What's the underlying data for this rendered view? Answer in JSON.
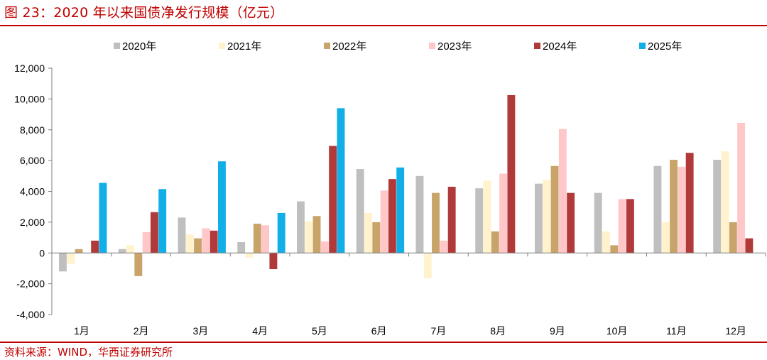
{
  "header": {
    "title": "图 23：2020 年以来国债净发行规模（亿元）"
  },
  "footer": {
    "source": "资料来源：WIND，华西证券研究所"
  },
  "colors": {
    "accent": "#c00000",
    "series": [
      "#bfbfbf",
      "#fff2cc",
      "#c9a46a",
      "#ffc7c7",
      "#b03a3a",
      "#12aee8"
    ]
  },
  "chart_data": {
    "type": "bar",
    "title": "2020 年以来国债净发行规模（亿元）",
    "xlabel": "",
    "ylabel": "",
    "ylim": [
      -4000,
      12000
    ],
    "yticks": [
      -4000,
      -2000,
      0,
      2000,
      4000,
      6000,
      8000,
      10000,
      12000
    ],
    "ytick_labels": [
      "-4,000",
      "-2,000",
      "0",
      "2,000",
      "4,000",
      "6,000",
      "8,000",
      "10,000",
      "12,000"
    ],
    "categories": [
      "1月",
      "2月",
      "3月",
      "4月",
      "5月",
      "6月",
      "7月",
      "8月",
      "9月",
      "10月",
      "11月",
      "12月"
    ],
    "legend_position": "top",
    "series": [
      {
        "name": "2020年",
        "values": [
          -1200,
          250,
          2300,
          700,
          3350,
          5450,
          5000,
          4200,
          4500,
          3900,
          5650,
          6050
        ]
      },
      {
        "name": "2021年",
        "values": [
          -700,
          500,
          1200,
          -300,
          2050,
          2600,
          -1650,
          4700,
          4750,
          1400,
          2000,
          6600
        ]
      },
      {
        "name": "2022年",
        "values": [
          250,
          -1500,
          950,
          1900,
          2400,
          2000,
          3900,
          1400,
          5650,
          500,
          6050,
          2000
        ]
      },
      {
        "name": "2023年",
        "values": [
          0,
          1350,
          1600,
          1800,
          750,
          4050,
          800,
          5150,
          8050,
          3500,
          5600,
          8450
        ]
      },
      {
        "name": "2024年",
        "values": [
          800,
          2650,
          1450,
          -1050,
          6950,
          4800,
          4300,
          10250,
          3900,
          3500,
          6500,
          950
        ]
      },
      {
        "name": "2025年",
        "values": [
          4550,
          4150,
          5950,
          2600,
          9400,
          5550,
          null,
          null,
          null,
          null,
          null,
          null
        ]
      }
    ]
  }
}
